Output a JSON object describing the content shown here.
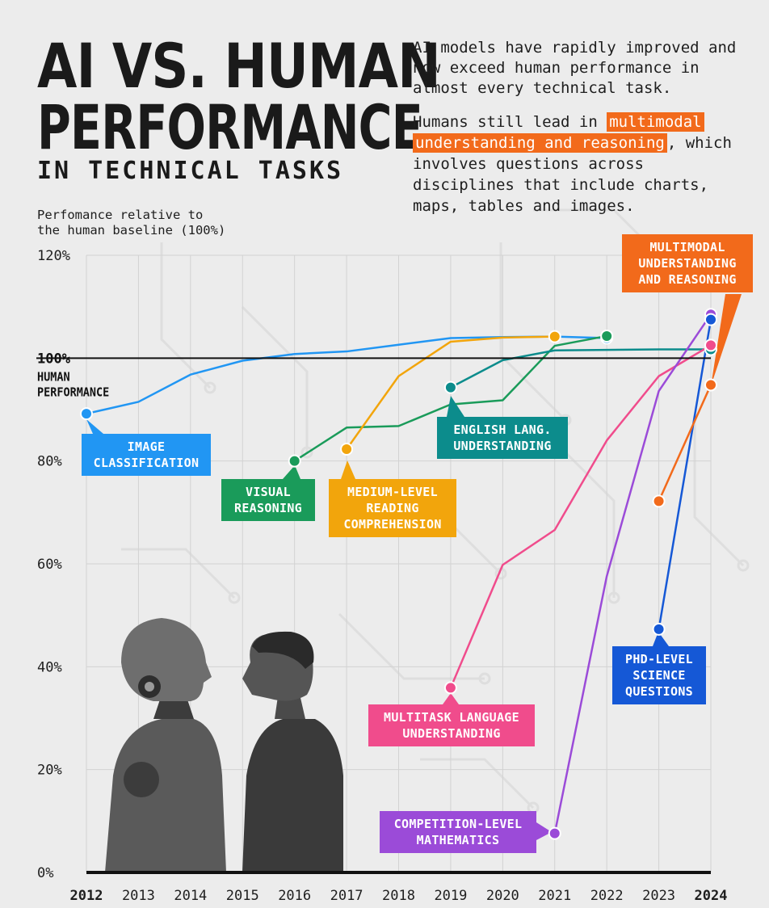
{
  "header": {
    "title_line1": "AI VS. HUMAN",
    "title_line2": "PERFORMANCE",
    "title_line3": "IN TECHNICAL TASKS"
  },
  "intro": {
    "paragraph1": "AI models have rapidly improved and now exceed human performance in almost every technical task.",
    "paragraph2_pre": "Humans still lead in ",
    "paragraph2_highlight": "multimodal understanding and reasoning",
    "paragraph2_post": ", which involves questions across disciplines that include charts, maps, tables and images."
  },
  "y_axis_note": "Perfomance relative to\nthe human baseline (100%)",
  "colors": {
    "image_classification": "#2196f3",
    "visual_reasoning": "#1a9b5a",
    "medium_reading": "#f2a50c",
    "english_understanding": "#0c8c8c",
    "multitask_language": "#f04c8c",
    "competition_math": "#9b4bd8",
    "phd_science": "#1558d6",
    "multimodal": "#f26a1b",
    "baseline": "#111111",
    "grid": "#d2d2d2"
  },
  "chart_data": {
    "type": "line",
    "x": [
      2012,
      2013,
      2014,
      2015,
      2016,
      2017,
      2018,
      2019,
      2020,
      2021,
      2022,
      2023,
      2024
    ],
    "x_tick_labels": [
      "2012",
      "2013",
      "2014",
      "2015",
      "2016",
      "2017",
      "2018",
      "2019",
      "2020",
      "2021",
      "2022",
      "2023",
      "2024"
    ],
    "x_bold_ticks": [
      "2012",
      "2024"
    ],
    "ylim": [
      0,
      120
    ],
    "y_ticks": [
      0,
      20,
      40,
      60,
      80,
      120
    ],
    "y_tick_labels": [
      "0%",
      "20%",
      "40%",
      "60%",
      "80%",
      "120%"
    ],
    "baseline": {
      "value": 100,
      "label_value": "100%",
      "label_text": "HUMAN\nPERFORMANCE"
    },
    "series": [
      {
        "name": "IMAGE CLASSIFICATION",
        "color_key": "image_classification",
        "points": [
          [
            2012,
            89.2
          ],
          [
            2013,
            91.5
          ],
          [
            2014,
            96.8
          ],
          [
            2015,
            99.5
          ],
          [
            2016,
            100.8
          ],
          [
            2017,
            101.3
          ],
          [
            2018,
            102.6
          ],
          [
            2019,
            103.9
          ],
          [
            2020,
            104.1
          ],
          [
            2021,
            104.2
          ],
          [
            2022,
            103.9
          ]
        ],
        "start_marker": true,
        "end_marker": true
      },
      {
        "name": "VISUAL REASONING",
        "color_key": "visual_reasoning",
        "points": [
          [
            2016,
            80.0
          ],
          [
            2017,
            86.5
          ],
          [
            2018,
            86.8
          ],
          [
            2019,
            91.0
          ],
          [
            2020,
            91.8
          ],
          [
            2021,
            102.4
          ],
          [
            2022,
            104.3
          ]
        ],
        "start_marker": true,
        "end_marker": true
      },
      {
        "name": "MEDIUM-LEVEL\nREADING\nCOMPREHENSION",
        "color_key": "medium_reading",
        "points": [
          [
            2017,
            82.3
          ],
          [
            2018,
            96.5
          ],
          [
            2019,
            103.2
          ],
          [
            2020,
            104.0
          ],
          [
            2021,
            104.2
          ]
        ],
        "start_marker": true,
        "end_marker": true
      },
      {
        "name": "ENGLISH LANG.\nUNDERSTANDING",
        "color_key": "english_understanding",
        "points": [
          [
            2019,
            94.3
          ],
          [
            2020,
            99.6
          ],
          [
            2021,
            101.5
          ],
          [
            2022,
            101.6
          ],
          [
            2023,
            101.7
          ],
          [
            2024,
            101.7
          ]
        ],
        "start_marker": true,
        "end_marker": true
      },
      {
        "name": "MULTITASK LANGUAGE\nUNDERSTANDING",
        "color_key": "multitask_language",
        "points": [
          [
            2019,
            35.9
          ],
          [
            2020,
            59.8
          ],
          [
            2021,
            66.6
          ],
          [
            2022,
            84.0
          ],
          [
            2023,
            96.5
          ],
          [
            2024,
            102.5
          ]
        ],
        "start_marker": true,
        "end_marker": true
      },
      {
        "name": "COMPETITION-LEVEL\nMATHEMATICS",
        "color_key": "competition_math",
        "points": [
          [
            2021,
            7.6
          ],
          [
            2022,
            57.6
          ],
          [
            2023,
            93.6
          ],
          [
            2024,
            108.5
          ]
        ],
        "start_marker": true,
        "end_marker": true
      },
      {
        "name": "PHD-LEVEL\nSCIENCE\nQUESTIONS",
        "color_key": "phd_science",
        "points": [
          [
            2023,
            47.3
          ],
          [
            2024,
            107.5
          ]
        ],
        "start_marker": true,
        "end_marker": true
      },
      {
        "name": "MULTIMODAL\nUNDERSTANDING\nAND REASONING",
        "color_key": "multimodal",
        "points": [
          [
            2023,
            72.2
          ],
          [
            2024,
            94.8
          ]
        ],
        "start_marker": true,
        "end_marker": true
      }
    ]
  }
}
